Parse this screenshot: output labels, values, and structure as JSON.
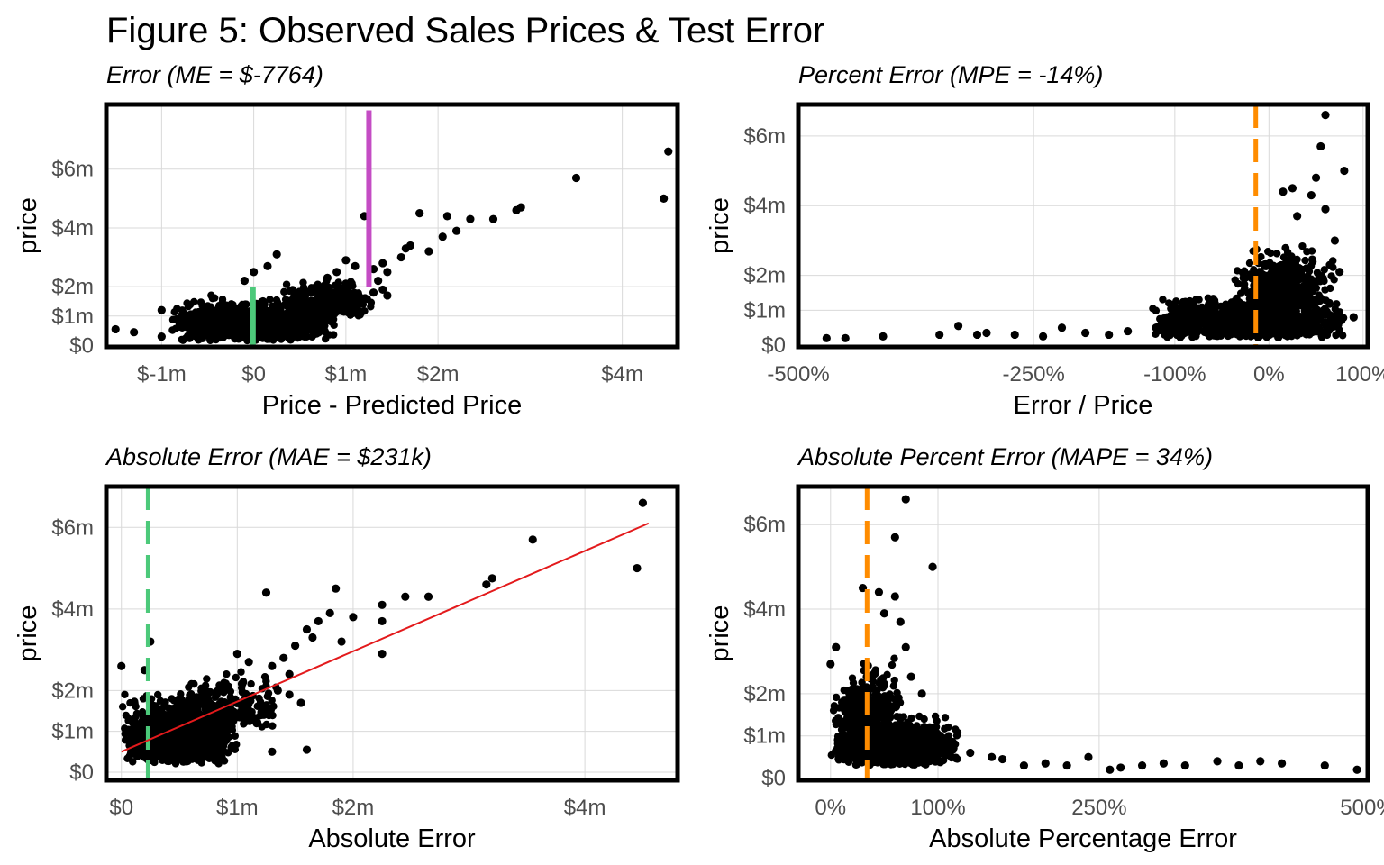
{
  "figure_title": "Figure 5: Observed Sales Prices & Test Error",
  "colors": {
    "green": "#4cc97a",
    "magenta": "#c44cc4",
    "orange": "#ff8c00",
    "red": "#e31a1c",
    "points": "#000000"
  },
  "chart_data": [
    {
      "id": "error",
      "type": "scatter",
      "title": "Error (ME = $-7764)",
      "xlabel": "Price - Predicted Price",
      "ylabel": "price",
      "xlim": [
        -1.6,
        4.6
      ],
      "ylim": [
        -0.05,
        8.2
      ],
      "x_ticks": [
        -1,
        0,
        1,
        2,
        4
      ],
      "x_tick_labels": [
        "$-1m",
        "$0",
        "$1m",
        "$2m",
        "$4m"
      ],
      "y_ticks": [
        0,
        1,
        2,
        4,
        6
      ],
      "y_tick_labels": [
        "$0",
        "$1m",
        "$2m",
        "$4m",
        "$6m"
      ],
      "grid": true,
      "legend": "none",
      "reference_lines": [
        {
          "kind": "segment",
          "x": -0.0078,
          "y0": 0,
          "y1": 2,
          "color": "green",
          "style": "solid"
        },
        {
          "kind": "segment",
          "x": 1.25,
          "y0": 2,
          "y1": 8,
          "color": "magenta",
          "style": "solid"
        }
      ],
      "points": [
        [
          4.5,
          6.6
        ],
        [
          4.45,
          5.0
        ],
        [
          3.5,
          5.7
        ],
        [
          2.9,
          4.7
        ],
        [
          2.85,
          4.6
        ],
        [
          2.6,
          4.3
        ],
        [
          2.35,
          4.3
        ],
        [
          2.1,
          4.4
        ],
        [
          1.8,
          4.5
        ],
        [
          1.2,
          4.4
        ],
        [
          2.05,
          3.7
        ],
        [
          2.2,
          3.9
        ],
        [
          1.65,
          3.3
        ],
        [
          1.9,
          3.2
        ],
        [
          1.7,
          3.4
        ],
        [
          1.6,
          3.0
        ],
        [
          1.4,
          2.8
        ],
        [
          1.45,
          2.5
        ],
        [
          1.3,
          2.6
        ],
        [
          1.35,
          2.2
        ],
        [
          1.1,
          2.7
        ],
        [
          1.0,
          2.9
        ],
        [
          0.9,
          2.5
        ],
        [
          1.0,
          2.1
        ],
        [
          0.8,
          2.3
        ],
        [
          1.4,
          1.9
        ],
        [
          1.45,
          1.7
        ],
        [
          1.3,
          1.8
        ],
        [
          0.7,
          2.0
        ],
        [
          0.5,
          1.8
        ],
        [
          0.0,
          2.5
        ],
        [
          0.25,
          3.1
        ],
        [
          0.15,
          2.7
        ],
        [
          -0.1,
          2.2
        ],
        [
          -1.5,
          0.55
        ],
        [
          -1.3,
          0.45
        ],
        [
          -1.0,
          0.3
        ],
        [
          -1.0,
          1.2
        ],
        [
          -0.7,
          1.0
        ],
        [
          -0.5,
          0.8
        ],
        [
          -0.3,
          0.4
        ],
        [
          -0.2,
          1.1
        ],
        [
          0.1,
          1.5
        ],
        [
          0.3,
          0.9
        ],
        [
          0.6,
          1.3
        ],
        [
          0.4,
          0.2
        ],
        [
          0.8,
          1.0
        ],
        [
          -0.6,
          0.2
        ]
      ],
      "point_clouds": [
        {
          "x_range": [
            -0.9,
            0.9
          ],
          "y_range": [
            0.15,
            1.9
          ],
          "n": 1100
        },
        {
          "x_range": [
            0.3,
            1.3
          ],
          "y_range": [
            1.0,
            2.5
          ],
          "n": 260
        }
      ]
    },
    {
      "id": "percent_error",
      "type": "scatter",
      "title": "Percent Error (MPE = -14%)",
      "xlabel": "Error / Price",
      "ylabel": "price",
      "xlim": [
        -5.0,
        1.05
      ],
      "ylim": [
        -0.05,
        6.9
      ],
      "x_ticks": [
        -5,
        -2.5,
        -1,
        0,
        1
      ],
      "x_tick_labels": [
        "-500%",
        "-250%",
        "-100%",
        "0%",
        "100%"
      ],
      "y_ticks": [
        0,
        1,
        2,
        4,
        6
      ],
      "y_tick_labels": [
        "$0",
        "$1m",
        "$2m",
        "$4m",
        "$6m"
      ],
      "grid": true,
      "legend": "none",
      "reference_lines": [
        {
          "kind": "vline",
          "x": -0.14,
          "color": "orange",
          "style": "dashed"
        }
      ],
      "points": [
        [
          -4.7,
          0.2
        ],
        [
          -4.5,
          0.2
        ],
        [
          -4.1,
          0.25
        ],
        [
          -3.5,
          0.3
        ],
        [
          -3.3,
          0.55
        ],
        [
          -3.1,
          0.3
        ],
        [
          -3.0,
          0.35
        ],
        [
          -2.7,
          0.3
        ],
        [
          -2.4,
          0.25
        ],
        [
          -2.2,
          0.5
        ],
        [
          -1.95,
          0.35
        ],
        [
          -1.7,
          0.3
        ],
        [
          -1.5,
          0.4
        ],
        [
          -1.2,
          0.5
        ],
        [
          0.6,
          6.6
        ],
        [
          0.55,
          5.7
        ],
        [
          0.8,
          5.0
        ],
        [
          0.5,
          4.8
        ],
        [
          0.25,
          4.5
        ],
        [
          0.45,
          4.3
        ],
        [
          0.15,
          4.4
        ],
        [
          0.6,
          3.9
        ],
        [
          0.3,
          3.7
        ],
        [
          0.7,
          3.0
        ],
        [
          0.75,
          2.1
        ],
        [
          0.9,
          0.8
        ]
      ],
      "point_clouds": [
        {
          "x_range": [
            -1.3,
            0.85
          ],
          "y_range": [
            0.2,
            1.6
          ],
          "n": 1100
        },
        {
          "x_range": [
            -0.4,
            0.75
          ],
          "y_range": [
            1.0,
            3.2
          ],
          "n": 350
        }
      ]
    },
    {
      "id": "absolute_error",
      "type": "scatter",
      "title": "Absolute Error (MAE = $231k)",
      "xlabel": "Absolute Error",
      "ylabel": "price",
      "xlim": [
        -0.13,
        4.8
      ],
      "ylim": [
        -0.2,
        7.0
      ],
      "x_ticks": [
        0,
        1,
        2,
        4
      ],
      "x_tick_labels": [
        "$0",
        "$1m",
        "$2m",
        "$4m"
      ],
      "y_ticks": [
        0,
        1,
        2,
        4,
        6
      ],
      "y_tick_labels": [
        "$0",
        "$1m",
        "$2m",
        "$4m",
        "$6m"
      ],
      "grid": true,
      "legend": "none",
      "reference_lines": [
        {
          "kind": "vline",
          "x": 0.231,
          "color": "green",
          "style": "dashed"
        },
        {
          "kind": "fit",
          "x0": 0.0,
          "y0": 0.5,
          "x1": 4.55,
          "y1": 6.1,
          "color": "red",
          "style": "solid"
        }
      ],
      "points": [
        [
          4.5,
          6.6
        ],
        [
          4.45,
          5.0
        ],
        [
          3.55,
          5.7
        ],
        [
          3.2,
          4.75
        ],
        [
          3.15,
          4.6
        ],
        [
          2.65,
          4.3
        ],
        [
          2.45,
          4.3
        ],
        [
          2.25,
          4.1
        ],
        [
          2.25,
          3.7
        ],
        [
          2.0,
          3.8
        ],
        [
          1.8,
          3.9
        ],
        [
          1.7,
          3.7
        ],
        [
          1.85,
          4.5
        ],
        [
          1.25,
          4.4
        ],
        [
          1.65,
          3.3
        ],
        [
          1.9,
          3.2
        ],
        [
          1.5,
          3.1
        ],
        [
          1.6,
          3.5
        ],
        [
          1.4,
          2.8
        ],
        [
          1.45,
          2.4
        ],
        [
          1.3,
          2.6
        ],
        [
          1.1,
          2.7
        ],
        [
          1.0,
          2.9
        ],
        [
          1.35,
          2.0
        ],
        [
          1.45,
          1.9
        ],
        [
          1.55,
          1.7
        ],
        [
          1.3,
          0.5
        ],
        [
          1.6,
          0.55
        ],
        [
          2.25,
          2.9
        ],
        [
          0.25,
          3.2
        ],
        [
          0.0,
          2.6
        ],
        [
          0.2,
          2.5
        ]
      ],
      "point_clouds": [
        {
          "x_range": [
            0.0,
            1.0
          ],
          "y_range": [
            0.2,
            2.2
          ],
          "n": 1200
        },
        {
          "x_range": [
            0.5,
            1.4
          ],
          "y_range": [
            1.0,
            2.7
          ],
          "n": 220
        }
      ]
    },
    {
      "id": "absolute_percent_error",
      "type": "scatter",
      "title": "Absolute Percent Error (MAPE = 34%)",
      "xlabel": "Absolute Percentage Error",
      "ylabel": "price",
      "xlim": [
        -0.3,
        5.0
      ],
      "ylim": [
        -0.05,
        6.9
      ],
      "x_ticks": [
        0,
        1,
        2.5,
        5
      ],
      "x_tick_labels": [
        "0%",
        "100%",
        "250%",
        "500%"
      ],
      "y_ticks": [
        0,
        1,
        2,
        4,
        6
      ],
      "y_tick_labels": [
        "$0",
        "$1m",
        "$2m",
        "$4m",
        "$6m"
      ],
      "grid": true,
      "legend": "none",
      "reference_lines": [
        {
          "kind": "vline",
          "x": 0.34,
          "color": "orange",
          "style": "dashed"
        }
      ],
      "points": [
        [
          0.7,
          6.6
        ],
        [
          0.6,
          5.7
        ],
        [
          0.95,
          5.0
        ],
        [
          0.3,
          4.5
        ],
        [
          0.45,
          4.4
        ],
        [
          0.6,
          4.3
        ],
        [
          0.5,
          3.9
        ],
        [
          0.65,
          3.7
        ],
        [
          0.7,
          3.1
        ],
        [
          0.75,
          2.4
        ],
        [
          0.85,
          2.0
        ],
        [
          0.0,
          2.7
        ],
        [
          0.05,
          3.1
        ],
        [
          1.3,
          0.6
        ],
        [
          1.5,
          0.5
        ],
        [
          1.6,
          0.45
        ],
        [
          1.8,
          0.3
        ],
        [
          2.0,
          0.35
        ],
        [
          2.2,
          0.3
        ],
        [
          2.4,
          0.5
        ],
        [
          2.6,
          0.2
        ],
        [
          2.7,
          0.25
        ],
        [
          2.9,
          0.3
        ],
        [
          3.1,
          0.35
        ],
        [
          3.3,
          0.3
        ],
        [
          3.6,
          0.4
        ],
        [
          3.8,
          0.3
        ],
        [
          4.0,
          0.4
        ],
        [
          4.2,
          0.35
        ],
        [
          4.6,
          0.3
        ],
        [
          4.9,
          0.2
        ]
      ],
      "point_clouds": [
        {
          "x_range": [
            0.0,
            1.2
          ],
          "y_range": [
            0.3,
            1.6
          ],
          "n": 1150
        },
        {
          "x_range": [
            0.0,
            0.7
          ],
          "y_range": [
            1.0,
            3.0
          ],
          "n": 320
        }
      ]
    }
  ]
}
